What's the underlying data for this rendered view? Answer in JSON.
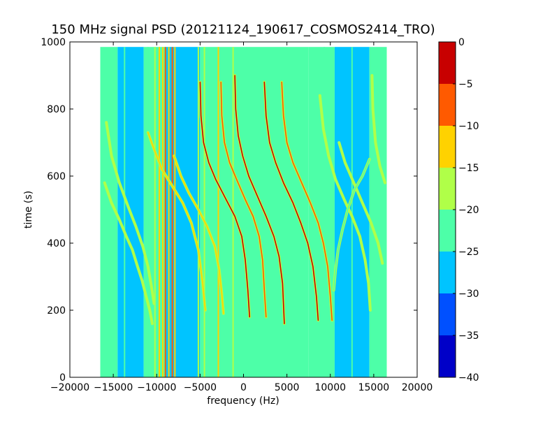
{
  "chart_data": {
    "type": "heatmap",
    "title": "150 MHz signal PSD (20121124_190617_COSMOS2414_TRO)",
    "xlabel": "frequency (Hz)",
    "ylabel": "time (s)",
    "xlim": [
      -20000,
      20000
    ],
    "ylim": [
      0,
      1000
    ],
    "xticks": [
      -20000,
      -15000,
      -10000,
      -5000,
      0,
      5000,
      10000,
      15000,
      20000
    ],
    "yticks": [
      0,
      200,
      400,
      600,
      800,
      1000
    ],
    "data_extent": {
      "freq": [
        -16500,
        16500
      ],
      "time": [
        0,
        985
      ]
    },
    "colorbar": {
      "range": [
        -40,
        0
      ],
      "ticks": [
        0,
        -5,
        -10,
        -15,
        -20,
        -25,
        -30,
        -35,
        -40
      ],
      "levels": [
        {
          "from": -40,
          "to": -35,
          "color": "#0000c8"
        },
        {
          "from": -35,
          "to": -30,
          "color": "#0050ff"
        },
        {
          "from": -30,
          "to": -25,
          "color": "#00c4ff"
        },
        {
          "from": -25,
          "to": -20,
          "color": "#4dffa8"
        },
        {
          "from": -20,
          "to": -15,
          "color": "#b0ff48"
        },
        {
          "from": -15,
          "to": -10,
          "color": "#ffd200"
        },
        {
          "from": -10,
          "to": -5,
          "color": "#ff5a00"
        },
        {
          "from": -5,
          "to": 0,
          "color": "#c80000"
        }
      ]
    },
    "background_bands": [
      {
        "freq": [
          -16500,
          -14500
        ],
        "level": -25
      },
      {
        "freq": [
          -14500,
          -11500
        ],
        "level": -30
      },
      {
        "freq": [
          -11500,
          -9000
        ],
        "level": -25
      },
      {
        "freq": [
          -9000,
          -5000
        ],
        "level": -30
      },
      {
        "freq": [
          -5000,
          7500
        ],
        "level": -25
      },
      {
        "freq": [
          7500,
          10500
        ],
        "level": -25
      },
      {
        "freq": [
          10500,
          14500
        ],
        "level": -30
      },
      {
        "freq": [
          14500,
          16500
        ],
        "level": -25
      }
    ],
    "vertical_lines": [
      {
        "freq": -13700,
        "time": [
          0,
          985
        ],
        "level": -25
      },
      {
        "freq": -11000,
        "time": [
          0,
          985
        ],
        "level": -25
      },
      {
        "freq": -10200,
        "time": [
          0,
          985
        ],
        "level": -20
      },
      {
        "freq": -9700,
        "time": [
          0,
          985
        ],
        "level": -15
      },
      {
        "freq": -9300,
        "time": [
          0,
          985
        ],
        "level": -15
      },
      {
        "freq": -9000,
        "time": [
          0,
          985
        ],
        "level": -10
      },
      {
        "freq": -8600,
        "time": [
          0,
          985
        ],
        "level": -15
      },
      {
        "freq": -8200,
        "time": [
          0,
          985
        ],
        "level": -10
      },
      {
        "freq": -7900,
        "time": [
          0,
          985
        ],
        "level": -15
      },
      {
        "freq": -5200,
        "time": [
          0,
          985
        ],
        "level": -20
      },
      {
        "freq": -4500,
        "time": [
          0,
          985
        ],
        "level": -20
      },
      {
        "freq": -2900,
        "time": [
          0,
          985
        ],
        "level": -15
      },
      {
        "freq": -1200,
        "time": [
          0,
          985
        ],
        "level": -20
      },
      {
        "freq": 9300,
        "time": [
          0,
          985
        ],
        "level": -25
      },
      {
        "freq": 12500,
        "time": [
          0,
          985
        ],
        "level": -25
      }
    ],
    "series": [
      {
        "points": [
          [
            -16000,
            580
          ],
          [
            -15200,
            520
          ],
          [
            -14300,
            470
          ],
          [
            -13500,
            420
          ],
          [
            -12800,
            380
          ],
          [
            -12200,
            330
          ],
          [
            -11700,
            290
          ],
          [
            -11200,
            240
          ],
          [
            -10800,
            200
          ],
          [
            -10500,
            160
          ]
        ],
        "level": -20
      },
      {
        "points": [
          [
            -15800,
            760
          ],
          [
            -15200,
            660
          ],
          [
            -14300,
            580
          ],
          [
            -13300,
            510
          ],
          [
            -12400,
            450
          ],
          [
            -11600,
            390
          ],
          [
            -11000,
            330
          ],
          [
            -10600,
            270
          ],
          [
            -10300,
            220
          ]
        ],
        "level": -20
      },
      {
        "points": [
          [
            -11000,
            730
          ],
          [
            -10300,
            680
          ],
          [
            -9400,
            620
          ],
          [
            -8200,
            570
          ],
          [
            -7000,
            520
          ],
          [
            -6000,
            460
          ],
          [
            -5200,
            380
          ],
          [
            -4700,
            280
          ],
          [
            -4400,
            200
          ]
        ],
        "level": -15
      },
      {
        "points": [
          [
            -8000,
            660
          ],
          [
            -7200,
            600
          ],
          [
            -6300,
            550
          ],
          [
            -5200,
            500
          ],
          [
            -4200,
            450
          ],
          [
            -3300,
            390
          ],
          [
            -2800,
            320
          ],
          [
            -2500,
            250
          ],
          [
            -2300,
            190
          ]
        ],
        "level": -15
      },
      {
        "points": [
          [
            -5000,
            880
          ],
          [
            -4900,
            780
          ],
          [
            -4600,
            700
          ],
          [
            -4000,
            640
          ],
          [
            -3200,
            590
          ],
          [
            -2000,
            530
          ],
          [
            -1000,
            480
          ],
          [
            -200,
            420
          ],
          [
            200,
            350
          ],
          [
            500,
            260
          ],
          [
            700,
            180
          ]
        ],
        "level": -5
      },
      {
        "points": [
          [
            -2600,
            880
          ],
          [
            -2500,
            780
          ],
          [
            -2200,
            700
          ],
          [
            -1600,
            640
          ],
          [
            -800,
            590
          ],
          [
            200,
            530
          ],
          [
            1100,
            480
          ],
          [
            1800,
            420
          ],
          [
            2200,
            350
          ],
          [
            2400,
            260
          ],
          [
            2600,
            180
          ]
        ],
        "level": -10
      },
      {
        "points": [
          [
            -1000,
            900
          ],
          [
            -900,
            800
          ],
          [
            -600,
            720
          ],
          [
            -100,
            660
          ],
          [
            600,
            600
          ],
          [
            1600,
            540
          ],
          [
            2600,
            480
          ],
          [
            3500,
            420
          ],
          [
            4100,
            360
          ],
          [
            4500,
            280
          ],
          [
            4700,
            160
          ]
        ],
        "level": -5
      },
      {
        "points": [
          [
            2400,
            880
          ],
          [
            2600,
            780
          ],
          [
            3000,
            700
          ],
          [
            3700,
            640
          ],
          [
            4600,
            580
          ],
          [
            5700,
            520
          ],
          [
            6600,
            460
          ],
          [
            7400,
            400
          ],
          [
            8000,
            330
          ],
          [
            8400,
            240
          ],
          [
            8600,
            170
          ]
        ],
        "level": -5
      },
      {
        "points": [
          [
            4400,
            880
          ],
          [
            4600,
            780
          ],
          [
            5000,
            700
          ],
          [
            5700,
            640
          ],
          [
            6700,
            580
          ],
          [
            7700,
            520
          ],
          [
            8600,
            460
          ],
          [
            9200,
            400
          ],
          [
            9700,
            330
          ],
          [
            10000,
            240
          ],
          [
            10200,
            170
          ]
        ],
        "level": -10
      },
      {
        "points": [
          [
            8800,
            840
          ],
          [
            9200,
            740
          ],
          [
            9800,
            660
          ],
          [
            10600,
            590
          ],
          [
            11600,
            530
          ],
          [
            12500,
            480
          ],
          [
            13400,
            420
          ],
          [
            14000,
            350
          ],
          [
            14400,
            280
          ],
          [
            14600,
            200
          ]
        ],
        "level": -20
      },
      {
        "points": [
          [
            11000,
            700
          ],
          [
            11700,
            640
          ],
          [
            12700,
            580
          ],
          [
            13700,
            520
          ],
          [
            14700,
            460
          ],
          [
            15500,
            400
          ],
          [
            16000,
            340
          ]
        ],
        "level": -20
      },
      {
        "points": [
          [
            14800,
            900
          ],
          [
            14900,
            800
          ],
          [
            15200,
            700
          ],
          [
            15700,
            630
          ],
          [
            16300,
            580
          ]
        ],
        "level": -20
      },
      {
        "points": [
          [
            14500,
            650
          ],
          [
            13700,
            600
          ],
          [
            12800,
            560
          ],
          [
            12000,
            500
          ],
          [
            11400,
            440
          ],
          [
            10900,
            380
          ],
          [
            10600,
            320
          ],
          [
            10400,
            260
          ]
        ],
        "level": -25
      }
    ]
  }
}
